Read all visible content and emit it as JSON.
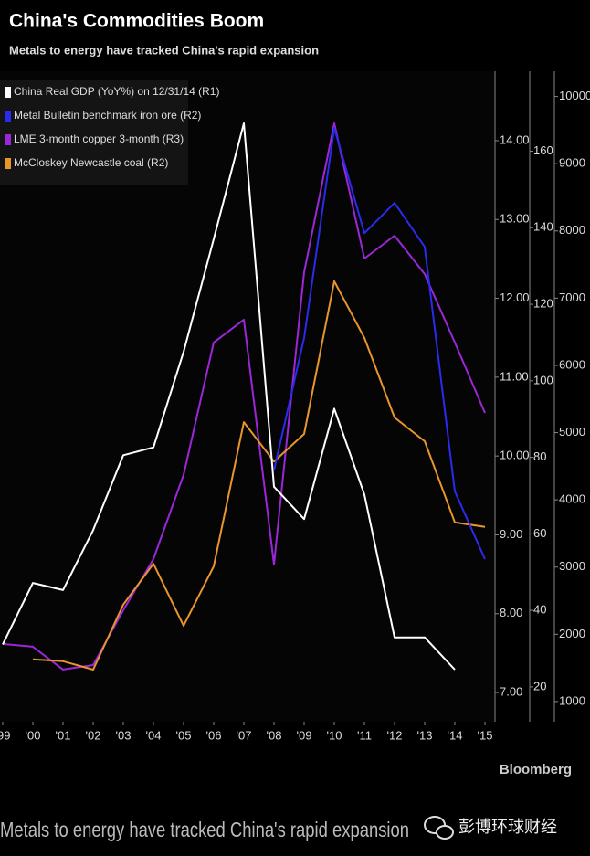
{
  "chart_data": {
    "type": "line",
    "title": "China's Commodities Boom",
    "subtitle": "Metals to energy have tracked China's rapid expansion",
    "source": "Bloomberg",
    "categories": [
      "'99",
      "'00",
      "'01",
      "'02",
      "'03",
      "'04",
      "'05",
      "'06",
      "'07",
      "'08",
      "'09",
      "'10",
      "'11",
      "'12",
      "'13",
      "'14",
      "'15"
    ],
    "ylim": [
      6.63,
      14.88
    ],
    "yticks": [
      {
        "value": 7,
        "label": "7.00"
      },
      {
        "value": 8,
        "label": "8.00"
      },
      {
        "value": 9,
        "label": "9.00"
      },
      {
        "value": 10,
        "label": "10.00"
      },
      {
        "value": 11,
        "label": "11.00"
      },
      {
        "value": 12,
        "label": "12.00"
      },
      {
        "value": 13,
        "label": "13.00"
      },
      {
        "value": 14,
        "label": "14.00"
      }
    ],
    "y2lim": [
      10.9,
      180.9
    ],
    "y2ticks": [
      20,
      40,
      60,
      80,
      100,
      120,
      140,
      160
    ],
    "y3lim": [
      700,
      10375
    ],
    "y3ticks": [
      1000,
      2000,
      3000,
      4000,
      5000,
      6000,
      7000,
      8000,
      9000,
      10000
    ],
    "grid": false,
    "legend": "top-left",
    "series": [
      {
        "name": "China Real GDP (YoY%) on 12/31/14 (R1)",
        "color": "#ffffff",
        "axis": "y",
        "values": [
          7.61,
          8.39,
          8.3,
          9.06,
          10.01,
          10.11,
          11.32,
          12.75,
          14.22,
          9.61,
          9.2,
          10.6,
          9.51,
          7.7,
          7.7,
          7.29,
          null
        ]
      },
      {
        "name": "Metal Bulletin benchmark iron ore  (R2)",
        "color": "#2b2bf0",
        "axis": "y2",
        "values": [
          null,
          null,
          null,
          null,
          null,
          null,
          null,
          null,
          null,
          76.6,
          111.2,
          166.1,
          138.6,
          146.5,
          135.0,
          71.1,
          53.4
        ]
      },
      {
        "name": "LME 3-month copper 3-month (R3)",
        "color": "#9b27d8",
        "axis": "y3",
        "values": [
          1856,
          1815,
          1476,
          1543,
          2359,
          3120,
          4370,
          6340,
          6680,
          3038,
          7386,
          9600,
          7590,
          7929,
          7359,
          6340,
          5293
        ]
      },
      {
        "name": "McCloskey Newcastle coal (R2)",
        "color": "#e8952e",
        "axis": "y2",
        "values": [
          null,
          27.2,
          26.7,
          24.5,
          41.5,
          52.2,
          36.0,
          51.5,
          89.2,
          78.9,
          86.1,
          126.0,
          111.2,
          90.4,
          84.2,
          63.0,
          61.8
        ]
      }
    ]
  },
  "footer": {
    "caption": "Metals to energy have tracked China's rapid expansion",
    "account": "彭博环球财经"
  }
}
